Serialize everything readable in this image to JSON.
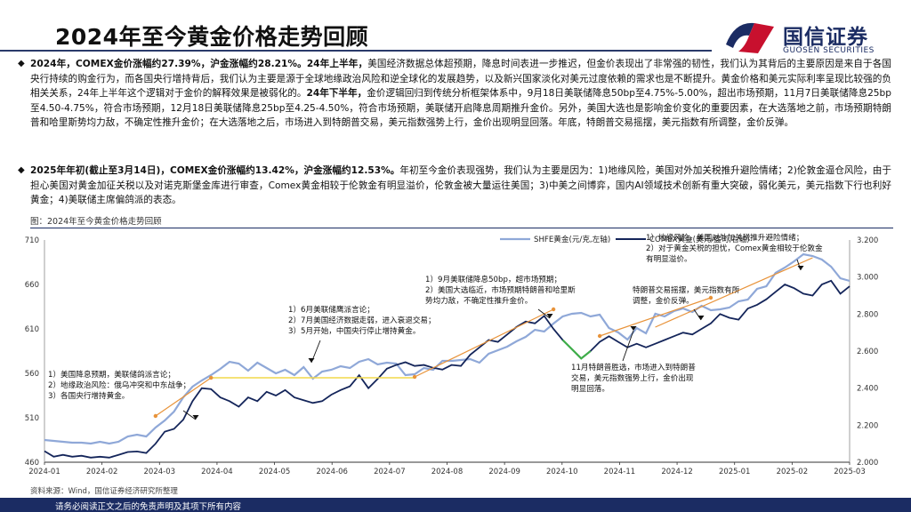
{
  "header": {
    "title": "2024年至今黄金价格走势回顾",
    "logo_cn": "国信证券",
    "logo_en": "GUOSEN SECURITIES"
  },
  "para1": {
    "bullet": "◆",
    "html": "<b>2024年，COMEX金价涨幅约27.39%，沪金涨幅约28.21%。24年上半年，</b>美国经济数据总体超预期，降息时间表进一步推迟，但金价表现出了非常强的韧性，我们认为其背后的主要原因是来自于各国央行持续的购金行为，而各国央行增持背后，我们认为主要是源于全球地缘政治风险和逆全球化的发展趋势，以及新兴国家淡化对美元过度依赖的需求也是不断提升。黄金价格和美元实际利率呈现比较强的负相关关系，24年上半年这个逻辑对于金价的解释效果是被弱化的。<b>24年下半年，</b>金价逻辑回归到传统分析框架体系中，9月18日美联储降息50bp至4.75%-5.00%，超出市场预期，11月7日美联储降息25bp至4.50-4.75%，符合市场预期，12月18日美联储降息25bp至4.25-4.50%，符合市场预期，美联储开启降息周期推升金价。另外，美国大选也是影响金价变化的重要因素，在大选落地之前，市场预期特朗普和哈里斯势均力敌，不确定性推升金价；在大选落地之后，市场进入到特朗普交易，美元指数强势上行，金价出现明显回落。年底，特朗普交易摇摆，美元指数有所调整，金价反弹。"
  },
  "para2": {
    "bullet": "◆",
    "html": "<b>2025年年初(截止至3月14日)，COMEX金价涨幅约13.42%，沪金涨幅约12.53%。</b>年初至今金价表现强势，我们认为主要是因为：1)地缘风险，美国对外加关税推升避险情绪；2)伦敦金逼仓风险，由于担心美国对黄金加征关税以及对诺克斯堡金库进行审查，Comex黄金相较于伦敦金有明显溢价，伦敦金被大量运往美国；3)中美之间博弈，国内AI领域技术创新有重大突破，弱化美元，美元指数下行也利好黄金；4)美联储主席偏鸽派的表态。"
  },
  "figure": {
    "caption": "图：2024年至今黄金价格走势回顾"
  },
  "source": "资料来源：Wind，国信证券经济研究所整理",
  "footer": "请务必阅读正文之后的免责声明及其项下所有内容",
  "colors": {
    "shfe": "#8fa8d8",
    "comex": "#14255a",
    "annot_line": "#e8933a",
    "flat_line": "#f2d84a",
    "green": "#3fae49",
    "brand": "#1b2c63",
    "logo_red": "#c8102e"
  },
  "chart_data": {
    "type": "line",
    "x_ticks": [
      "2024-01",
      "2024-02",
      "2024-03",
      "2024-04",
      "2024-05",
      "2024-06",
      "2024-07",
      "2024-08",
      "2024-09",
      "2024-10",
      "2024-11",
      "2024-12",
      "2025-01",
      "2025-02",
      "2025-03"
    ],
    "y_left": {
      "ylim": [
        460,
        710
      ],
      "ticks": [
        460,
        510,
        560,
        610,
        660,
        710
      ]
    },
    "y_right": {
      "ylim": [
        2000,
        3200
      ],
      "ticks": [
        "2.000",
        "2.200",
        "2.400",
        "2.600",
        "2.800",
        "3.000",
        "3.200"
      ]
    },
    "series": [
      {
        "name": "SHFE黄金(元/克,左轴)",
        "axis": "left",
        "values": [
          485,
          484,
          483,
          482,
          482,
          481,
          483,
          481,
          483,
          489,
          491,
          489,
          499,
          507,
          517,
          533,
          545,
          552,
          558,
          565,
          573,
          571,
          563,
          572,
          566,
          560,
          564,
          558,
          567,
          554,
          562,
          564,
          568,
          566,
          573,
          576,
          570,
          572,
          571,
          558,
          559,
          566,
          564,
          574,
          574,
          575,
          576,
          572,
          582,
          586,
          590,
          596,
          601,
          609,
          607,
          616,
          624,
          627,
          628,
          624,
          626,
          611,
          606,
          598,
          611,
          605,
          627,
          624,
          630,
          633,
          629,
          636,
          631,
          632,
          634,
          641,
          643,
          655,
          658,
          673,
          679,
          686,
          694,
          692,
          688,
          680,
          667,
          664
        ]
      },
      {
        "name": "COMEX黄金(美元/盎司,右轴)",
        "axis": "right",
        "values": [
          2060,
          2030,
          2040,
          2030,
          2035,
          2025,
          2030,
          2025,
          2040,
          2055,
          2058,
          2050,
          2100,
          2165,
          2180,
          2230,
          2330,
          2400,
          2395,
          2350,
          2330,
          2300,
          2350,
          2330,
          2380,
          2360,
          2390,
          2350,
          2335,
          2320,
          2330,
          2365,
          2390,
          2410,
          2470,
          2400,
          2450,
          2505,
          2525,
          2540,
          2520,
          2525,
          2510,
          2500,
          2525,
          2520,
          2580,
          2620,
          2660,
          2650,
          2690,
          2730,
          2760,
          2750,
          2790,
          2720,
          2660,
          2610,
          2560,
          2600,
          2650,
          2680,
          2650,
          2620,
          2640,
          2620,
          2640,
          2660,
          2680,
          2700,
          2690,
          2720,
          2750,
          2800,
          2780,
          2770,
          2830,
          2850,
          2880,
          2920,
          2960,
          2940,
          2910,
          2900,
          2960,
          2980,
          2910,
          2950
        ]
      }
    ],
    "annotations": [
      {
        "label": "ann-1",
        "lines": [
          "1）美国降息预期，美联储鸽派言论；",
          "2）地缘政治风险：俄乌冲突和中东战争；",
          "3）各国央行增持黄金。"
        ]
      },
      {
        "label": "ann-2",
        "lines": [
          "1）6月美联储鹰派言论；",
          "2）7月美国经济数据走弱，进入衰退交易；",
          "3）5月开始，中国央行停止增持黄金。"
        ]
      },
      {
        "label": "ann-3",
        "lines": [
          "1）9月美联储降息50bp，超市场预期；",
          "2）美国大选临近，市场预期特朗普和哈里斯",
          "势均力敌，不确定性推升金价。"
        ]
      },
      {
        "label": "ann-4",
        "lines": [
          "11月特朗普胜选，市场进入到特朗普",
          "交易，美元指数强势上行，金价出现",
          "明显回落。"
        ]
      },
      {
        "label": "ann-5",
        "lines": [
          "特朗普交易摇摆，美元指数有所",
          "调整，金价反弹。"
        ]
      },
      {
        "label": "ann-6",
        "lines": [
          "1）地缘风险，美国对外加关税推升避险情绪；",
          "2）对于黄金关税的担忧，Comex黄金相较于伦敦金",
          "有明显溢价。"
        ]
      }
    ]
  }
}
